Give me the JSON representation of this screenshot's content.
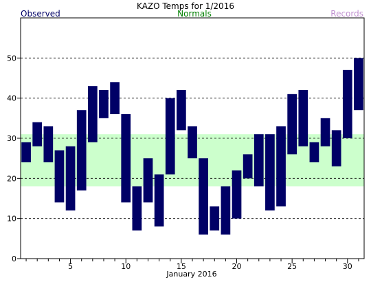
{
  "chart_data": {
    "type": "bar",
    "title": "KAZO Temps for 1/2016",
    "xlabel": "January 2016",
    "ylabel": "",
    "ylim": [
      0,
      60
    ],
    "xlim": [
      0.5,
      31.5
    ],
    "y_ticks": [
      0,
      10,
      20,
      30,
      40,
      50
    ],
    "x_ticks": [
      5,
      10,
      15,
      20,
      25,
      30
    ],
    "grid": true,
    "legend": [
      {
        "label": "Observed",
        "color": "#000066"
      },
      {
        "label": "Normals",
        "color": "#008000"
      },
      {
        "label": "Records",
        "color": "#c090d0"
      }
    ],
    "normals_band": {
      "low": 18,
      "high": 31,
      "color": "#ccffcc"
    },
    "series": [
      {
        "name": "Observed",
        "color": "#000066",
        "days": [
          1,
          2,
          3,
          4,
          5,
          6,
          7,
          8,
          9,
          10,
          11,
          12,
          13,
          14,
          15,
          16,
          17,
          18,
          19,
          20,
          21,
          22,
          23,
          24,
          25,
          26,
          27,
          28,
          29,
          30,
          31
        ],
        "low": [
          24,
          28,
          24,
          14,
          12,
          17,
          29,
          35,
          36,
          14,
          7,
          14,
          8,
          21,
          32,
          25,
          6,
          7,
          6,
          10,
          20,
          18,
          12,
          13,
          26,
          28,
          24,
          28,
          23,
          30,
          37
        ],
        "high": [
          29,
          34,
          33,
          27,
          28,
          37,
          43,
          42,
          44,
          36,
          18,
          25,
          21,
          40,
          42,
          33,
          25,
          13,
          18,
          22,
          26,
          31,
          31,
          33,
          41,
          42,
          29,
          35,
          32,
          47,
          50
        ]
      }
    ]
  }
}
